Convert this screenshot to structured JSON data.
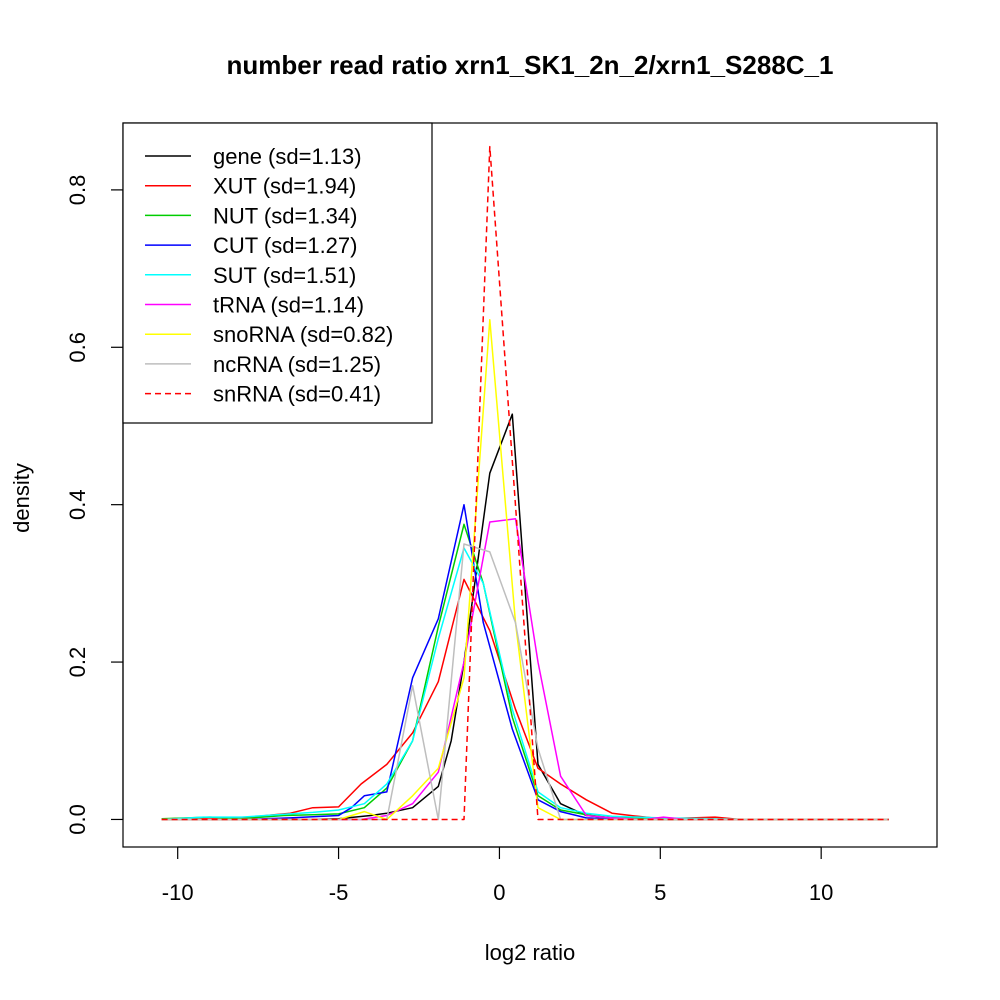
{
  "chart_data": {
    "type": "line",
    "title": "number read ratio xrn1_SK1_2n_2/xrn1_S288C_1",
    "xlabel": "log2 ratio",
    "ylabel": "density",
    "xlim": [
      -11.7,
      13.6
    ],
    "ylim": [
      -0.035,
      0.885
    ],
    "xticks": [
      -10,
      -5,
      0,
      5,
      10
    ],
    "xtick_labels": [
      "-10",
      "-5",
      "0",
      "5",
      "10"
    ],
    "yticks": [
      0.0,
      0.2,
      0.4,
      0.6,
      0.8
    ],
    "ytick_labels": [
      "0.0",
      "0.2",
      "0.4",
      "0.6",
      "0.8"
    ],
    "grid": false,
    "legend_position": "top-left",
    "series": [
      {
        "name": "gene (sd=1.13)",
        "color": "#000000",
        "dash": "solid",
        "points": [
          [
            -10.5,
            0.0
          ],
          [
            -8,
            0.0
          ],
          [
            -6,
            0.0
          ],
          [
            -5,
            0.001
          ],
          [
            -4,
            0.005
          ],
          [
            -3.5,
            0.008
          ],
          [
            -2.7,
            0.015
          ],
          [
            -1.9,
            0.042
          ],
          [
            -1.5,
            0.1
          ],
          [
            -1.1,
            0.2
          ],
          [
            -0.3,
            0.44
          ],
          [
            0.4,
            0.515
          ],
          [
            1.2,
            0.07
          ],
          [
            1.9,
            0.02
          ],
          [
            2.7,
            0.005
          ],
          [
            3.5,
            0.002
          ],
          [
            5,
            0.0
          ],
          [
            8,
            0.0
          ],
          [
            12.1,
            0.0
          ]
        ]
      },
      {
        "name": "XUT (sd=1.94)",
        "color": "#ff0000",
        "dash": "solid",
        "points": [
          [
            -10.5,
            0.0
          ],
          [
            -9,
            0.002
          ],
          [
            -8,
            0.002
          ],
          [
            -7,
            0.006
          ],
          [
            -6.5,
            0.008
          ],
          [
            -5.8,
            0.015
          ],
          [
            -5,
            0.016
          ],
          [
            -4.3,
            0.045
          ],
          [
            -3.5,
            0.07
          ],
          [
            -2.7,
            0.11
          ],
          [
            -1.9,
            0.175
          ],
          [
            -1.1,
            0.305
          ],
          [
            -0.3,
            0.24
          ],
          [
            0.5,
            0.14
          ],
          [
            1.2,
            0.065
          ],
          [
            1.9,
            0.045
          ],
          [
            2.7,
            0.025
          ],
          [
            3.5,
            0.008
          ],
          [
            4.3,
            0.004
          ],
          [
            5,
            0.001
          ],
          [
            6,
            0.002
          ],
          [
            6.7,
            0.003
          ],
          [
            7.5,
            0.0
          ],
          [
            12.1,
            0.0
          ]
        ]
      },
      {
        "name": "NUT (sd=1.34)",
        "color": "#00cd00",
        "dash": "solid",
        "points": [
          [
            -10.5,
            0.001
          ],
          [
            -9,
            0.003
          ],
          [
            -8,
            0.001
          ],
          [
            -6.7,
            0.005
          ],
          [
            -5.8,
            0.006
          ],
          [
            -5,
            0.007
          ],
          [
            -4.2,
            0.015
          ],
          [
            -3.5,
            0.04
          ],
          [
            -2.7,
            0.1
          ],
          [
            -1.9,
            0.245
          ],
          [
            -1.1,
            0.375
          ],
          [
            -0.5,
            0.3
          ],
          [
            0.4,
            0.13
          ],
          [
            1.2,
            0.03
          ],
          [
            1.9,
            0.012
          ],
          [
            2.7,
            0.006
          ],
          [
            3.5,
            0.002
          ],
          [
            5,
            0.001
          ],
          [
            8,
            0.0
          ],
          [
            12.1,
            0.0
          ]
        ]
      },
      {
        "name": "CUT (sd=1.27)",
        "color": "#0000ff",
        "dash": "solid",
        "points": [
          [
            -10.5,
            0.0
          ],
          [
            -8,
            0.0
          ],
          [
            -6.5,
            0.002
          ],
          [
            -5,
            0.005
          ],
          [
            -4.6,
            0.015
          ],
          [
            -4.2,
            0.03
          ],
          [
            -3.5,
            0.035
          ],
          [
            -2.7,
            0.18
          ],
          [
            -1.9,
            0.255
          ],
          [
            -1.1,
            0.4
          ],
          [
            -0.5,
            0.25
          ],
          [
            0.4,
            0.115
          ],
          [
            1.2,
            0.025
          ],
          [
            1.9,
            0.01
          ],
          [
            2.7,
            0.002
          ],
          [
            4,
            0.0
          ],
          [
            12.1,
            0.0
          ]
        ]
      },
      {
        "name": "SUT (sd=1.51)",
        "color": "#00ffff",
        "dash": "solid",
        "points": [
          [
            -10.5,
            0.0
          ],
          [
            -9.2,
            0.003
          ],
          [
            -8,
            0.003
          ],
          [
            -6.5,
            0.007
          ],
          [
            -5.8,
            0.009
          ],
          [
            -5,
            0.012
          ],
          [
            -4.2,
            0.02
          ],
          [
            -3.5,
            0.045
          ],
          [
            -2.7,
            0.1
          ],
          [
            -1.9,
            0.23
          ],
          [
            -1.1,
            0.345
          ],
          [
            -0.5,
            0.3
          ],
          [
            0.4,
            0.14
          ],
          [
            1.2,
            0.035
          ],
          [
            1.9,
            0.015
          ],
          [
            2.7,
            0.008
          ],
          [
            3.5,
            0.004
          ],
          [
            5,
            0.002
          ],
          [
            8,
            0.0
          ],
          [
            12.1,
            0.0
          ]
        ]
      },
      {
        "name": "tRNA (sd=1.14)",
        "color": "#ff00ff",
        "dash": "solid",
        "points": [
          [
            -10.5,
            0.0
          ],
          [
            -6,
            0.0
          ],
          [
            -4.3,
            0.0
          ],
          [
            -3.5,
            0.005
          ],
          [
            -2.7,
            0.02
          ],
          [
            -1.9,
            0.06
          ],
          [
            -1.1,
            0.2
          ],
          [
            -0.3,
            0.378
          ],
          [
            0.5,
            0.382
          ],
          [
            1.2,
            0.2
          ],
          [
            1.9,
            0.055
          ],
          [
            2.7,
            0.005
          ],
          [
            3.5,
            0.002
          ],
          [
            4.5,
            0.0
          ],
          [
            5.1,
            0.003
          ],
          [
            5.8,
            0.0
          ],
          [
            12.1,
            0.0
          ]
        ]
      },
      {
        "name": "snoRNA (sd=0.82)",
        "color": "#ffff00",
        "dash": "solid",
        "points": [
          [
            -10.5,
            0.0
          ],
          [
            -6,
            0.0
          ],
          [
            -5,
            0.0
          ],
          [
            -4.2,
            0.01
          ],
          [
            -3.5,
            0.0
          ],
          [
            -2.7,
            0.03
          ],
          [
            -1.9,
            0.065
          ],
          [
            -1.1,
            0.18
          ],
          [
            -0.3,
            0.635
          ],
          [
            0.5,
            0.25
          ],
          [
            1.2,
            0.015
          ],
          [
            1.9,
            0.0
          ],
          [
            12.1,
            0.0
          ]
        ]
      },
      {
        "name": "ncRNA (sd=1.25)",
        "color": "#bebebe",
        "dash": "solid",
        "points": [
          [
            -10.5,
            0.0
          ],
          [
            -6,
            0.0
          ],
          [
            -4.2,
            0.0
          ],
          [
            -3.5,
            0.0
          ],
          [
            -2.7,
            0.17
          ],
          [
            -1.9,
            0.0
          ],
          [
            -1.1,
            0.35
          ],
          [
            -0.3,
            0.34
          ],
          [
            0.5,
            0.25
          ],
          [
            1.2,
            0.09
          ],
          [
            1.9,
            0.0
          ],
          [
            12.1,
            0.0
          ]
        ]
      },
      {
        "name": "snRNA (sd=0.41)",
        "color": "#ff0000",
        "dash": "dashed",
        "points": [
          [
            -10.5,
            0.0
          ],
          [
            -1.1,
            0.0
          ],
          [
            -0.3,
            0.855
          ],
          [
            1.2,
            0.0
          ],
          [
            12.1,
            0.0
          ]
        ]
      }
    ]
  }
}
